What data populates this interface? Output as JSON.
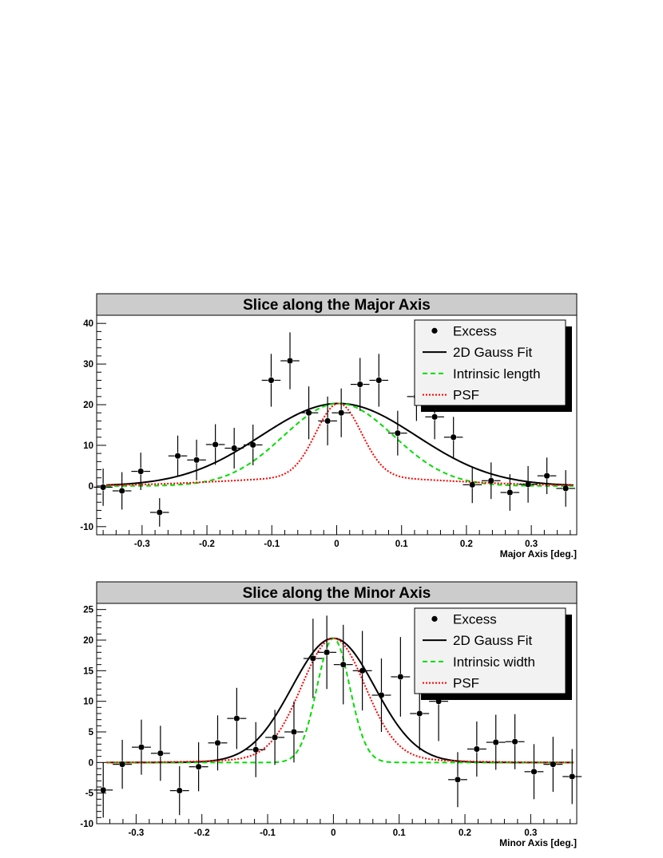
{
  "chart_data": [
    {
      "type": "scatter",
      "title": "Slice along the Major Axis",
      "xlabel": "Major Axis [deg.]",
      "ylabel": "",
      "xlim": [
        -0.37,
        0.37
      ],
      "ylim": [
        -12,
        42
      ],
      "xticks": [
        "-0.3",
        "-0.2",
        "-0.1",
        "0",
        "0.1",
        "0.2",
        "0.3"
      ],
      "yticks": [
        "-10",
        "0",
        "10",
        "20",
        "30",
        "40"
      ],
      "legend_position": "top-right",
      "legend": [
        "Excess",
        "2D Gauss Fit",
        "Intrinsic length",
        "PSF"
      ],
      "series": [
        {
          "name": "Excess",
          "x": [
            -0.36,
            -0.331,
            -0.302,
            -0.273,
            -0.245,
            -0.216,
            -0.187,
            -0.158,
            -0.129,
            -0.101,
            -0.072,
            -0.043,
            -0.014,
            0.007,
            0.036,
            0.065,
            0.094,
            0.123,
            0.151,
            0.18,
            0.209,
            0.238,
            0.267,
            0.295,
            0.324,
            0.353
          ],
          "y": [
            -0.3,
            -1.2,
            3.6,
            -6.5,
            7.4,
            6.4,
            10.2,
            9.3,
            10.1,
            26,
            30.8,
            18,
            16,
            18,
            25,
            26,
            13,
            22,
            17,
            12,
            0.3,
            1.3,
            -1.6,
            0.4,
            2.5,
            -0.6
          ],
          "yerr": [
            4.6,
            4.6,
            4.6,
            3.5,
            5.0,
            5.0,
            5.0,
            5.0,
            5.0,
            6.5,
            7.0,
            6.5,
            6.0,
            6.0,
            6.5,
            6.5,
            5.5,
            6.0,
            5.5,
            5.0,
            4.5,
            4.5,
            4.5,
            4.5,
            4.5,
            4.5
          ],
          "xerr": 0.0145
        },
        {
          "name": "2D Gauss Fit",
          "model": "gaussian",
          "amplitude": 20.3,
          "mean": 0.003,
          "sigma": 0.12
        },
        {
          "name": "Intrinsic length",
          "model": "gaussian",
          "amplitude": 20.3,
          "mean": 0.003,
          "sigma": 0.085
        },
        {
          "name": "PSF",
          "model": "psf",
          "amplitude": 20.3,
          "mean": 0.003,
          "core_sigma": 0.035,
          "tail_amplitude": 2.2,
          "tail_sigma": 0.16
        }
      ]
    },
    {
      "type": "scatter",
      "title": "Slice along the Minor Axis",
      "xlabel": "Minor Axis [deg.]",
      "ylabel": "",
      "xlim": [
        -0.36,
        0.37
      ],
      "ylim": [
        -10,
        26
      ],
      "xticks": [
        "-0.3",
        "-0.2",
        "-0.1",
        "0",
        "0.1",
        "0.2",
        "0.3"
      ],
      "yticks": [
        "-10",
        "-5",
        "0",
        "5",
        "10",
        "15",
        "20",
        "25"
      ],
      "legend_position": "top-right",
      "legend": [
        "Excess",
        "2D Gauss Fit",
        "Intrinsic width",
        "PSF"
      ],
      "series": [
        {
          "name": "Excess",
          "x": [
            -0.35,
            -0.321,
            -0.292,
            -0.263,
            -0.234,
            -0.205,
            -0.176,
            -0.147,
            -0.118,
            -0.089,
            -0.06,
            -0.031,
            -0.01,
            0.015,
            0.044,
            0.073,
            0.102,
            0.131,
            0.16,
            0.189,
            0.218,
            0.247,
            0.276,
            0.305,
            0.334,
            0.363
          ],
          "y": [
            -4.5,
            -0.3,
            2.5,
            1.5,
            -4.6,
            -0.7,
            3.2,
            7.2,
            2.1,
            4.1,
            5.0,
            17,
            18,
            16,
            15,
            11,
            14,
            8,
            10,
            -2.8,
            2.2,
            3.3,
            3.4,
            -1.5,
            -0.3,
            -2.3
          ],
          "yerr": [
            4.5,
            4.0,
            4.5,
            4.5,
            4.0,
            4.0,
            4.5,
            5.0,
            4.5,
            4.5,
            5.0,
            6.5,
            6.0,
            6.5,
            6.5,
            6.0,
            6.5,
            6.0,
            6.5,
            4.5,
            4.5,
            4.5,
            4.5,
            4.5,
            4.5,
            4.5
          ],
          "xerr": 0.0145
        },
        {
          "name": "2D Gauss Fit",
          "model": "gaussian",
          "amplitude": 20.3,
          "mean": 0.0,
          "sigma": 0.063
        },
        {
          "name": "Intrinsic width",
          "model": "gaussian",
          "amplitude": 20.3,
          "mean": 0.0,
          "sigma": 0.025
        },
        {
          "name": "PSF",
          "model": "psf",
          "amplitude": 20.3,
          "mean": 0.0,
          "core_sigma": 0.048,
          "tail_amplitude": 0.8,
          "tail_sigma": 0.12
        }
      ]
    }
  ],
  "colors": {
    "points": "#000000",
    "fit": "#000000",
    "intrinsic": "#00dd00",
    "psf": "#ff0000",
    "title_bar": "#cccccc",
    "legend_bg": "#f2f2f2",
    "legend_shadow": "#000000"
  }
}
